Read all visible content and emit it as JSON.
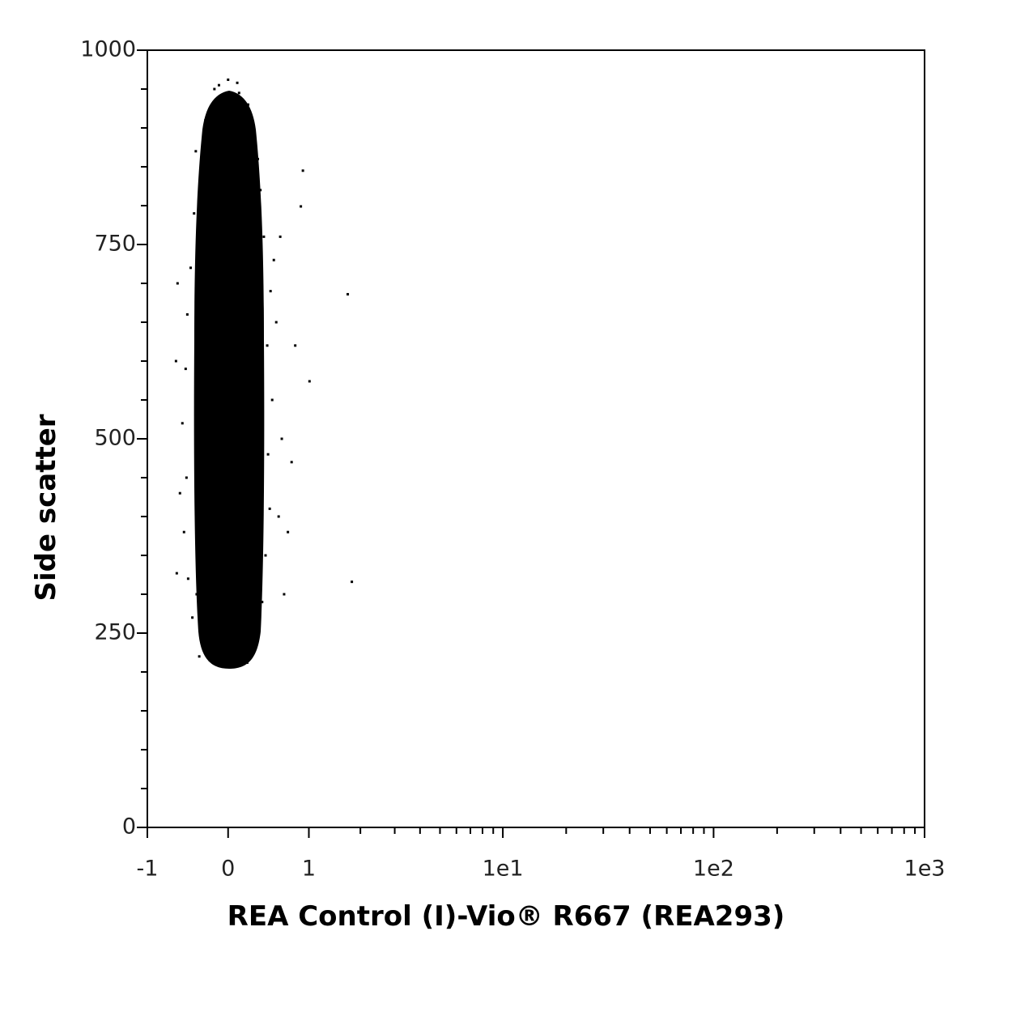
{
  "chart_data": {
    "type": "scatter",
    "x_label": "REA Control (I)-Vio® R667 (REA293)",
    "y_label": "Side scatter",
    "xscale": "asinh",
    "xlim": [
      -1,
      1000
    ],
    "ylim": [
      0,
      1000
    ],
    "xticks": [
      -1,
      0,
      1,
      {
        "value": 10,
        "label": "1e1"
      },
      {
        "value": 100,
        "label": "1e2"
      },
      {
        "value": 1000,
        "label": "1e3"
      }
    ],
    "xminorticks": [
      2,
      3,
      4,
      5,
      6,
      7,
      8,
      9,
      20,
      30,
      40,
      50,
      60,
      70,
      80,
      90,
      200,
      300,
      400,
      500,
      600,
      700,
      800,
      900
    ],
    "yticks": [
      0,
      250,
      500,
      750,
      1000
    ],
    "yminorticks": [
      50,
      100,
      150,
      200,
      300,
      350,
      400,
      450,
      550,
      600,
      650,
      700,
      800,
      850,
      900,
      950
    ],
    "color": "#000000",
    "x": [
      -0.32,
      0.05,
      0.21,
      -0.18,
      0.3,
      -0.4,
      0.38,
      -0.45,
      0.42,
      -0.5,
      0.47,
      -0.47,
      0.45,
      -0.52,
      0.5,
      -0.48,
      0.44,
      -0.46,
      0.48,
      -0.42,
      0.4,
      -0.38,
      0.36,
      -0.3,
      0.3,
      -0.25,
      0.22,
      -0.15,
      0.1,
      0.0,
      -0.08,
      0.15,
      -0.6,
      0.62,
      0.58,
      -0.55,
      0.55,
      -0.58,
      0.65,
      0.6,
      -0.28,
      0.27,
      -0.35,
      0.35,
      0.91,
      1.71,
      1.8,
      1.01,
      -0.59,
      0.88,
      0.75,
      0.8,
      0.7,
      -0.2,
      0.18,
      -0.1,
      0.12,
      0.33,
      -0.36,
      0.52
    ],
    "y": [
      220,
      208,
      212,
      230,
      245,
      270,
      290,
      320,
      350,
      380,
      410,
      450,
      480,
      520,
      550,
      590,
      620,
      660,
      690,
      720,
      760,
      790,
      820,
      850,
      880,
      910,
      930,
      950,
      958,
      962,
      940,
      900,
      600,
      500,
      400,
      430,
      650,
      700,
      300,
      760,
      260,
      270,
      300,
      330,
      845,
      686,
      316,
      574,
      327,
      799,
      470,
      620,
      380,
      215,
      225,
      955,
      945,
      860,
      870,
      730
    ]
  }
}
